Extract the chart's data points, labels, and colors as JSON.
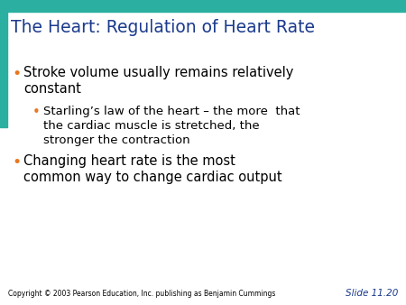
{
  "title": "The Heart: Regulation of Heart Rate",
  "title_color": "#1B3A8C",
  "title_fontsize": 13.5,
  "background_color": "#FFFFFF",
  "bar_color": "#2AAFA0",
  "bullet_color_main": "#E87722",
  "bullet_color_sub": "#E87722",
  "bullet1_line1": "Stroke volume usually remains relatively",
  "bullet1_line2": "constant",
  "sub_bullet_line1": "Starling’s law of the heart – the more  that",
  "sub_bullet_line2": "the cardiac muscle is stretched, the",
  "sub_bullet_line3": "stronger the contraction",
  "bullet2_line1": "Changing heart rate is the most",
  "bullet2_line2": "common way to change cardiac output",
  "copyright": "Copyright © 2003 Pearson Education, Inc. publishing as Benjamin Cummings",
  "slide_num": "Slide 11.20",
  "body_color": "#000000",
  "body_fontsize": 10.5,
  "sub_fontsize": 9.5,
  "copyright_fontsize": 5.5,
  "slide_num_color": "#1B3A8C",
  "slide_num_fontsize": 7.5,
  "top_bar_height": 0.038,
  "left_bar_width": 0.018,
  "left_bar_height": 0.38
}
